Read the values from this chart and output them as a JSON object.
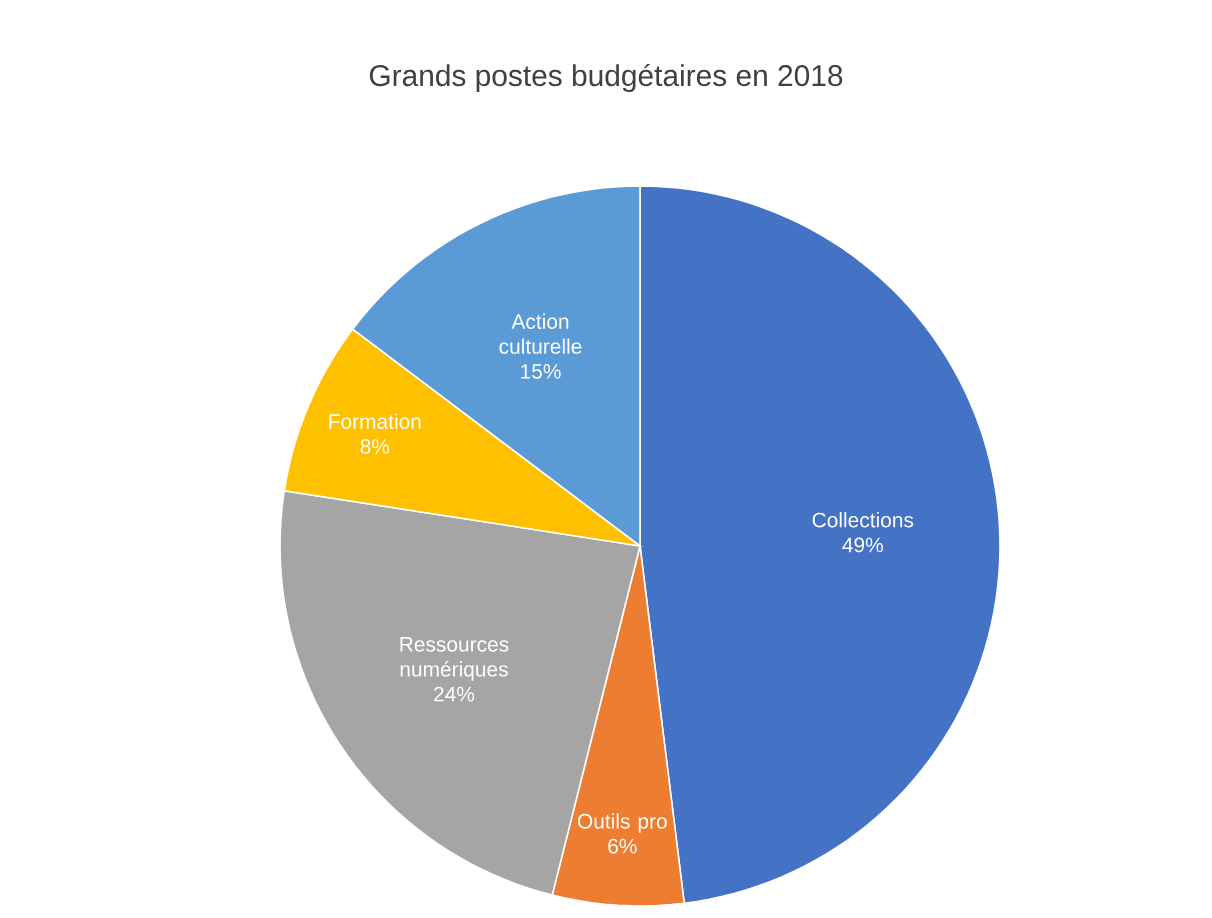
{
  "chart_data": {
    "type": "pie",
    "title": "Grands postes budgétaires en 2018",
    "categories": [
      "Collections",
      "Outils pro",
      "Ressources numériques",
      "Formation",
      "Action culturelle"
    ],
    "values": [
      49,
      6,
      24,
      8,
      15
    ],
    "value_labels": [
      "49%",
      "6%",
      "24%",
      "8%",
      "15%"
    ],
    "colors": [
      "#4472c4",
      "#ed7d31",
      "#a5a5a5",
      "#ffc000",
      "#5b9bd5"
    ]
  }
}
